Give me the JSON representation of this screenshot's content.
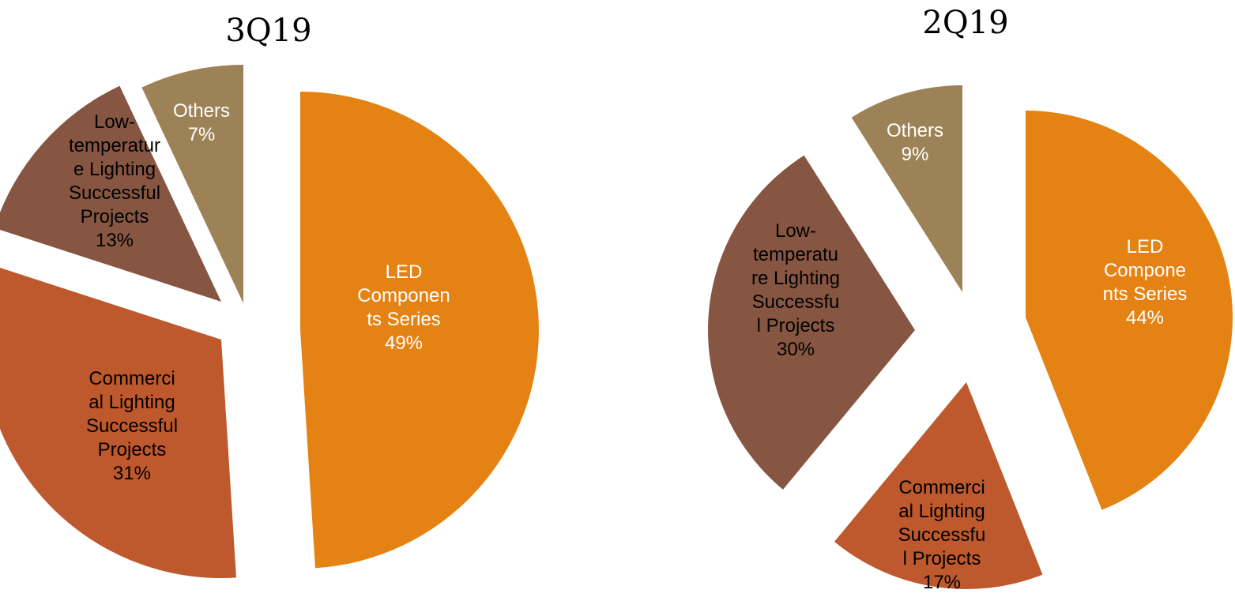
{
  "chart_data": [
    {
      "type": "pie",
      "title": "3Q19",
      "slices": [
        {
          "label": "LED Components Series",
          "value": 49,
          "value_label": "49%",
          "label_lines": [
            "LED",
            "Componen",
            "ts Series",
            "49%"
          ],
          "color": "#E48313",
          "text_color": "#FFFFFF"
        },
        {
          "label": "Commercial Lighting Successful Projects",
          "value": 31,
          "value_label": "31%",
          "label_lines": [
            "Commerci",
            "al Lighting",
            "Successful",
            "Projects",
            "31%"
          ],
          "color": "#BE582D",
          "text_color": "#000000"
        },
        {
          "label": "Low-temperature Lighting Successful Projects",
          "value": 13,
          "value_label": "13%",
          "label_lines": [
            "Low-",
            "temperatur",
            "e Lighting",
            "Successful",
            "Projects",
            "13%"
          ],
          "color": "#865642",
          "text_color": "#000000"
        },
        {
          "label": "Others",
          "value": 7,
          "value_label": "7%",
          "label_lines": [
            "Others",
            "7%"
          ],
          "color": "#9E8257",
          "text_color": "#FFFFFF"
        }
      ]
    },
    {
      "type": "pie",
      "title": "2Q19",
      "slices": [
        {
          "label": "LED Components Series",
          "value": 44,
          "value_label": "44%",
          "label_lines": [
            "LED",
            "Compone",
            "nts Series",
            "44%"
          ],
          "color": "#E48313",
          "text_color": "#FFFFFF"
        },
        {
          "label": "Commercial Lighting Successful Projects",
          "value": 17,
          "value_label": "17%",
          "label_lines": [
            "Commerci",
            "al Lighting",
            "Successfu",
            "l Projects",
            "17%"
          ],
          "color": "#BE582D",
          "text_color": "#000000"
        },
        {
          "label": "Low-temperature Lighting Successful Projects",
          "value": 30,
          "value_label": "30%",
          "label_lines": [
            "Low-",
            "temperatu",
            "re Lighting",
            "Successfu",
            "l Projects",
            "30%"
          ],
          "color": "#865642",
          "text_color": "#000000"
        },
        {
          "label": "Others",
          "value": 9,
          "value_label": "9%",
          "label_lines": [
            "Others",
            "9%"
          ],
          "color": "#9E8257",
          "text_color": "#FFFFFF"
        }
      ]
    }
  ]
}
